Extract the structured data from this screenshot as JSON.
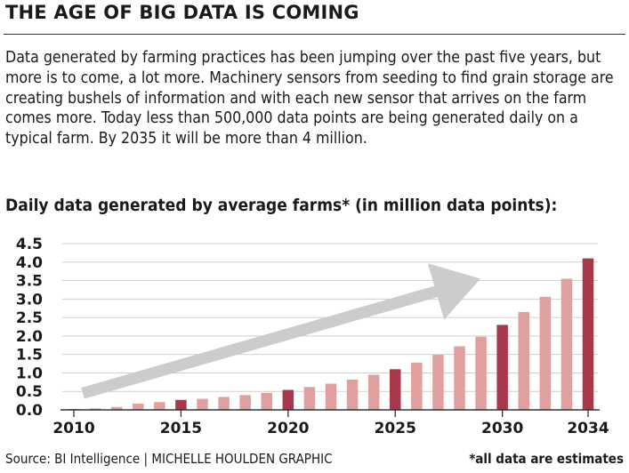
{
  "headline": "THE AGE OF BIG DATA IS COMING",
  "paragraph": "Data generated by farming practices has been jumping over the past five years, but more is to come, a lot more. Machinery sensors from seeding to find grain storage are creating bushels of information and with each new sensor that arrives on the farm comes more. Today less than 500,000 data points are being generated daily on a typical farm. By 2035 it will be more than 4 million.",
  "footer": {
    "source": "Source: BI Intelligence  |  MICHELLE HOULDEN GRAPHIC",
    "note": "*all data are estimates"
  },
  "chart_data": {
    "type": "bar",
    "title": "Daily data generated by average farms* (in million data points):",
    "xlabel": "",
    "ylabel": "",
    "ylim": [
      0,
      4.5
    ],
    "yticks": [
      "0.0",
      "0.5",
      "1.0",
      "1.5",
      "2.0",
      "2.5",
      "3.0",
      "3.5",
      "4.0",
      "4.5"
    ],
    "xtick_labels": [
      "2010",
      "2015",
      "2020",
      "2025",
      "2030",
      "2034"
    ],
    "grid": "horizontal",
    "categories": [
      2010,
      2011,
      2012,
      2013,
      2014,
      2015,
      2016,
      2017,
      2018,
      2019,
      2020,
      2021,
      2022,
      2023,
      2024,
      2025,
      2026,
      2027,
      2028,
      2029,
      2030,
      2031,
      2032,
      2033,
      2034
    ],
    "values": [
      0.02,
      0.04,
      0.08,
      0.17,
      0.21,
      0.27,
      0.3,
      0.35,
      0.4,
      0.46,
      0.54,
      0.62,
      0.71,
      0.82,
      0.95,
      1.1,
      1.28,
      1.49,
      1.72,
      1.98,
      2.3,
      2.65,
      3.06,
      3.55,
      4.1
    ],
    "highlight_categories": [
      2010,
      2015,
      2020,
      2025,
      2030,
      2034
    ],
    "colors": {
      "bar": "#e0a09f",
      "highlight": "#a8384a",
      "arrow": "#cccccc",
      "grid": "#cfcfcf"
    }
  }
}
